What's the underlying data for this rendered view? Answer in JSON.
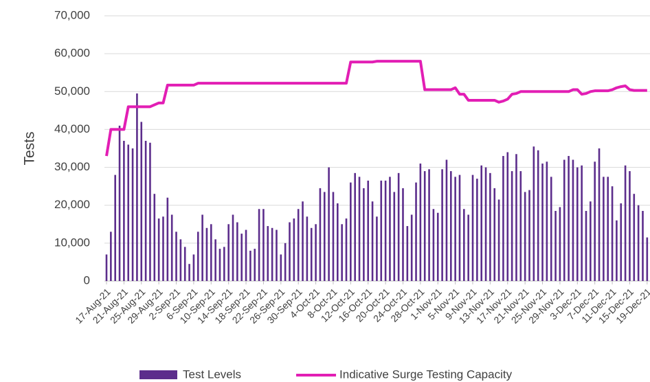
{
  "chart_data": {
    "type": "bar-line",
    "y_label": "Tests",
    "categories": [
      "17-Aug-21",
      null,
      null,
      null,
      "21-Aug-21",
      null,
      null,
      null,
      "25-Aug-21",
      null,
      null,
      null,
      "29-Aug-21",
      null,
      null,
      null,
      "2-Sep-21",
      null,
      null,
      null,
      "6-Sep-21",
      null,
      null,
      null,
      "10-Sep-21",
      null,
      null,
      null,
      "14-Sep-21",
      null,
      null,
      null,
      "18-Sep-21",
      null,
      null,
      null,
      "22-Sep-21",
      null,
      null,
      null,
      "26-Sep-21",
      null,
      null,
      null,
      "30-Sep-21",
      null,
      null,
      null,
      "4-Oct-21",
      null,
      null,
      null,
      "8-Oct-21",
      null,
      null,
      null,
      "12-Oct-21",
      null,
      null,
      null,
      "16-Oct-21",
      null,
      null,
      null,
      "20-Oct-21",
      null,
      null,
      null,
      "24-Oct-21",
      null,
      null,
      null,
      "28-Oct-21",
      null,
      null,
      null,
      "1-Nov-21",
      null,
      null,
      null,
      "5-Nov-21",
      null,
      null,
      null,
      "9-Nov-21",
      null,
      null,
      null,
      "13-Nov-21",
      null,
      null,
      null,
      "17-Nov-21",
      null,
      null,
      null,
      "21-Nov-21",
      null,
      null,
      null,
      "25-Nov-21",
      null,
      null,
      null,
      "29-Nov-21",
      null,
      null,
      null,
      "3-Dec-21",
      null,
      null,
      null,
      "7-Dec-21",
      null,
      null,
      null,
      "11-Dec-21",
      null,
      null,
      null,
      "15-Dec-21",
      null,
      null,
      null,
      "19-Dec-21"
    ],
    "series": [
      {
        "name": "Test Levels",
        "type": "bar",
        "color": "#5c2d8c",
        "values": [
          7000,
          13000,
          28000,
          41000,
          37000,
          36000,
          35000,
          49500,
          42000,
          37000,
          36500,
          23000,
          16500,
          17000,
          22000,
          17500,
          13000,
          11000,
          9000,
          4500,
          7000,
          13000,
          17500,
          14000,
          15000,
          11000,
          8500,
          9000,
          15000,
          17500,
          15500,
          12500,
          13500,
          8000,
          8500,
          19000,
          19000,
          14500,
          14000,
          13500,
          7000,
          10000,
          15500,
          16500,
          19000,
          21000,
          17000,
          14000,
          15000,
          24500,
          23500,
          30000,
          23500,
          20500,
          15000,
          16500,
          26000,
          28500,
          27500,
          24500,
          26500,
          21000,
          17000,
          26500,
          26500,
          27500,
          23500,
          28500,
          24500,
          14500,
          17500,
          26000,
          31000,
          29000,
          29500,
          19000,
          18000,
          29500,
          32000,
          29000,
          27500,
          28000,
          19000,
          17500,
          28000,
          27000,
          30500,
          30000,
          28500,
          24500,
          21500,
          33000,
          34000,
          29000,
          33500,
          29000,
          23500,
          24000,
          35500,
          34500,
          31000,
          31500,
          27500,
          18500,
          19500,
          32000,
          33000,
          32000,
          30000,
          30500,
          18500,
          21000,
          31500,
          35000,
          27500,
          27500,
          25000,
          16000,
          20500,
          30500,
          29000,
          23000,
          20000,
          18500,
          11500
        ]
      },
      {
        "name": "Indicative Surge Testing Capacity",
        "type": "line",
        "color": "#e21eb4",
        "values": [
          33000,
          40000,
          40000,
          40000,
          40000,
          46000,
          46000,
          46000,
          46000,
          46000,
          46000,
          46500,
          47000,
          47000,
          51700,
          51700,
          51700,
          51700,
          51700,
          51700,
          51700,
          52200,
          52200,
          52200,
          52200,
          52200,
          52200,
          52200,
          52200,
          52200,
          52200,
          52200,
          52200,
          52200,
          52200,
          52200,
          52200,
          52200,
          52200,
          52200,
          52200,
          52200,
          52200,
          52200,
          52200,
          52200,
          52200,
          52200,
          52200,
          52200,
          52200,
          52200,
          52200,
          52200,
          52200,
          52200,
          57800,
          57800,
          57800,
          57800,
          57800,
          57800,
          58000,
          58000,
          58000,
          58000,
          58000,
          58000,
          58000,
          58000,
          58000,
          58000,
          58000,
          50500,
          50500,
          50500,
          50500,
          50500,
          50500,
          50500,
          51000,
          49300,
          49300,
          47700,
          47700,
          47700,
          47700,
          47700,
          47700,
          47700,
          47200,
          47500,
          48000,
          49300,
          49500,
          50000,
          50000,
          50000,
          50000,
          50000,
          50000,
          50000,
          50000,
          50000,
          50000,
          50000,
          50000,
          50500,
          50500,
          49300,
          49500,
          50000,
          50200,
          50200,
          50200,
          50200,
          50500,
          51000,
          51300,
          51500,
          50500,
          50300,
          50300,
          50300,
          50300
        ]
      }
    ],
    "ylim": [
      0,
      70000
    ],
    "yticks": [
      0,
      {
        "value": 10000,
        "label": "10,000"
      },
      {
        "value": 20000,
        "label": "20,000"
      },
      {
        "value": 30000,
        "label": "30,000"
      },
      {
        "value": 40000,
        "label": "40,000"
      },
      {
        "value": 50000,
        "label": "50,000"
      },
      {
        "value": 60000,
        "label": "60,000"
      },
      {
        "value": 70000,
        "label": "70,000"
      }
    ],
    "grid": true,
    "legend": "bottom"
  }
}
